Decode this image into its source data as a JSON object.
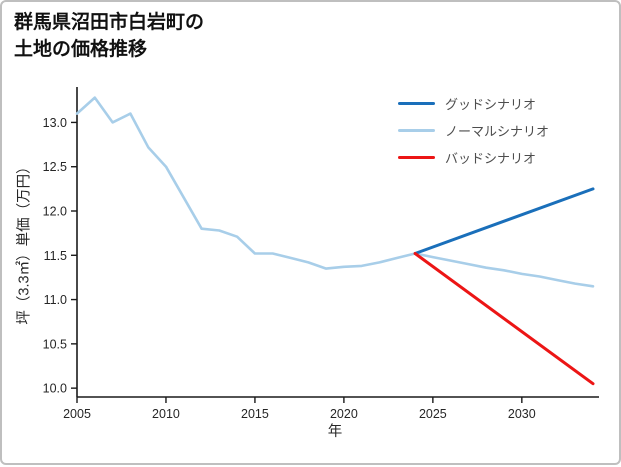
{
  "page": {
    "title_line1": "群馬県沼田市白岩町の",
    "title_line2": "土地の価格推移"
  },
  "chart_data": {
    "type": "line",
    "title": "群馬県沼田市白岩町の土地の価格推移",
    "xlabel": "年",
    "ylabel": "坪（3.3㎡）単価（万円）",
    "xlim": [
      2005,
      2034
    ],
    "ylim": [
      9.9,
      13.4
    ],
    "x_ticks": [
      2005,
      2010,
      2015,
      2020,
      2025,
      2030
    ],
    "y_ticks": [
      10.0,
      10.5,
      11.0,
      11.5,
      12.0,
      12.5,
      13.0
    ],
    "grid": false,
    "legend_position": "upper right",
    "axis_color": "#1a1a1a",
    "tick_text_color": "#262626",
    "legend_text_color": "#4d4d4d",
    "series": [
      {
        "key": "good",
        "name": "グッドシナリオ",
        "color": "#1a6fba",
        "width": 3,
        "x": [
          2024,
          2034
        ],
        "y": [
          11.52,
          12.25
        ]
      },
      {
        "key": "normal",
        "name": "ノーマルシナリオ",
        "color": "#a8cee9",
        "width": 2.6,
        "x": [
          2005,
          2006,
          2007,
          2008,
          2009,
          2010,
          2011,
          2012,
          2013,
          2014,
          2015,
          2016,
          2017,
          2018,
          2019,
          2020,
          2021,
          2022,
          2023,
          2024,
          2025,
          2026,
          2027,
          2028,
          2029,
          2030,
          2031,
          2032,
          2033,
          2034
        ],
        "y": [
          13.1,
          13.28,
          13.0,
          13.1,
          12.72,
          12.5,
          12.15,
          11.8,
          11.78,
          11.71,
          11.52,
          11.52,
          11.47,
          11.42,
          11.35,
          11.37,
          11.38,
          11.42,
          11.47,
          11.52,
          11.48,
          11.44,
          11.4,
          11.36,
          11.33,
          11.29,
          11.26,
          11.22,
          11.18,
          11.15
        ]
      },
      {
        "key": "bad",
        "name": "バッドシナリオ",
        "color": "#ec1515",
        "width": 3,
        "x": [
          2024,
          2034
        ],
        "y": [
          11.52,
          10.05
        ]
      }
    ]
  }
}
